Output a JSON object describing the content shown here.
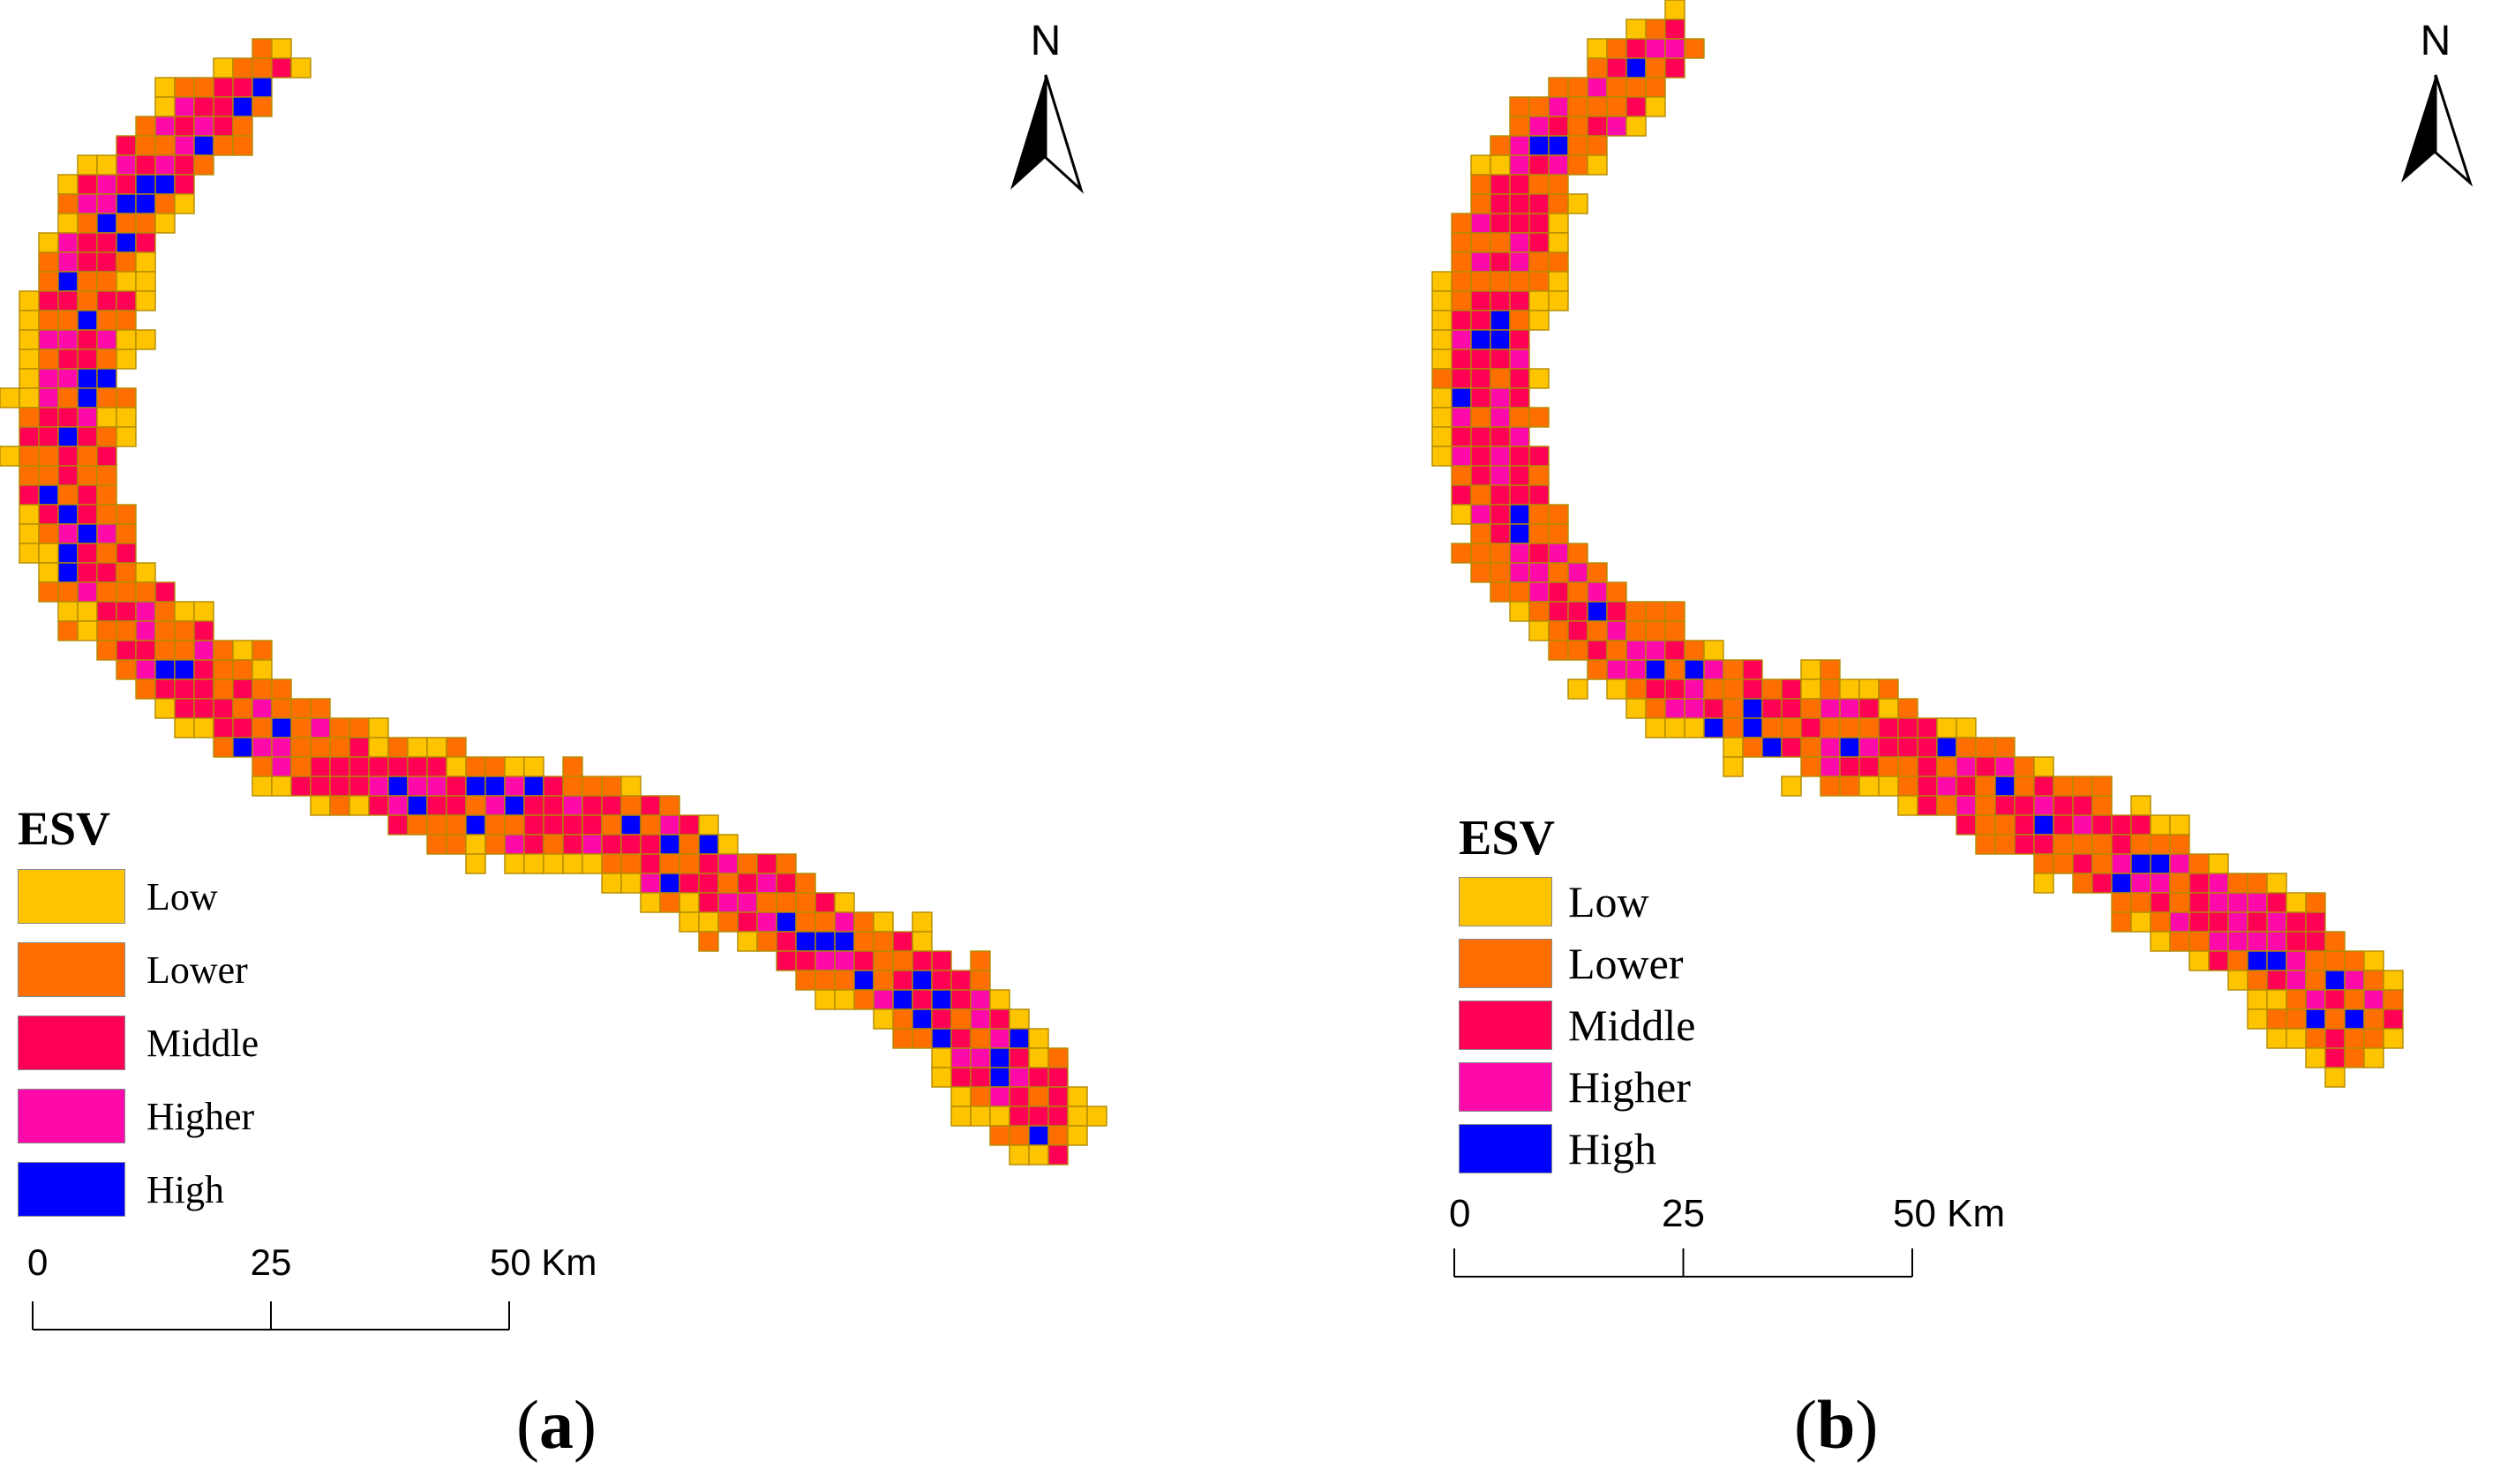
{
  "legend": {
    "title": "ESV",
    "classes": [
      {
        "label": "Low",
        "color": "#FFC400"
      },
      {
        "label": "Lower",
        "color": "#FF6E00"
      },
      {
        "label": "Middle",
        "color": "#FF0055"
      },
      {
        "label": "Higher",
        "color": "#FF0AAA"
      },
      {
        "label": "High",
        "color": "#0000FF"
      }
    ]
  },
  "north_arrow": {
    "label": "N",
    "icon": "north-arrow-icon"
  },
  "scale_bar": {
    "ticks": [
      "0",
      "25",
      "50 Km"
    ]
  },
  "panels": [
    {
      "id": "a",
      "label_letter": "a"
    },
    {
      "id": "b",
      "label_letter": "b"
    }
  ],
  "grid_cell_border_color": "#B08A00"
}
